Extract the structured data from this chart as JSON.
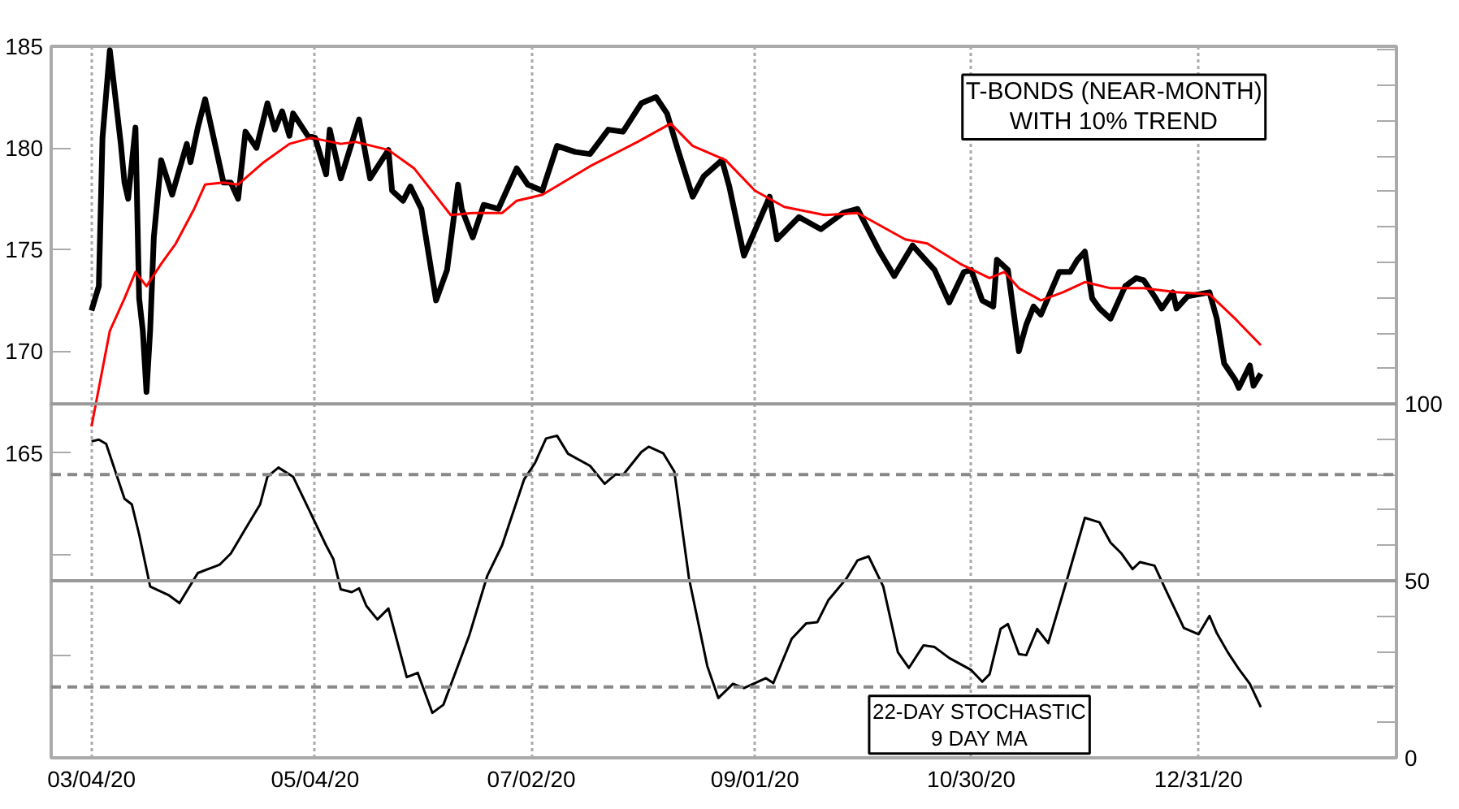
{
  "chart_data": {
    "type": "line",
    "annotations": [
      "T-BONDS (NEAR-MONTH)\nWITH 10% TREND",
      "22-DAY STOCHASTIC\n9 DAY MA"
    ],
    "xlim": [
      "2020-02-22",
      "2021-02-23"
    ],
    "xticks": [
      {
        "value": "2020-03-04",
        "label": "03/04/20"
      },
      {
        "value": "2020-05-04",
        "label": "05/04/20"
      },
      {
        "value": "2020-07-02",
        "label": "07/02/20"
      },
      {
        "value": "2020-09-01",
        "label": "09/01/20"
      },
      {
        "value": "2020-10-30",
        "label": "10/30/20"
      },
      {
        "value": "2020-12-31",
        "label": "12/31/20"
      }
    ],
    "ylim": [
      150,
      185
    ],
    "yticks": [
      {
        "value": 155,
        "label": null
      },
      {
        "value": 160,
        "label": null
      },
      165,
      170,
      175,
      180,
      185
    ],
    "y2lim": [
      0,
      201
    ],
    "y2ticks": [
      0,
      {
        "value": 10,
        "label": null
      },
      {
        "value": 20,
        "label": null
      },
      {
        "value": 30,
        "label": null
      },
      {
        "value": 40,
        "label": null
      },
      50,
      {
        "value": 60,
        "label": null
      },
      {
        "value": 70,
        "label": null
      },
      {
        "value": 80,
        "label": null
      },
      {
        "value": 90,
        "label": null
      },
      100,
      {
        "value": 110,
        "label": null
      },
      {
        "value": 120,
        "label": null
      },
      {
        "value": 130,
        "label": null
      },
      {
        "value": 140,
        "label": null
      },
      {
        "value": 150,
        "label": null
      },
      {
        "value": 160,
        "label": null
      },
      {
        "value": 170,
        "label": null
      },
      {
        "value": 180,
        "label": null
      },
      {
        "value": 190,
        "label": null
      },
      {
        "value": 200,
        "label": null
      }
    ],
    "grid": "x",
    "ref_lines": [
      {
        "axis": "y2",
        "value": 100,
        "color": "#999999",
        "line_style": "solid"
      },
      {
        "axis": "y2",
        "value": 80,
        "color": "#888888",
        "line_style": "dashed"
      },
      {
        "axis": "y2",
        "value": 50,
        "color": "#999999",
        "line_style": "solid"
      },
      {
        "axis": "y2",
        "value": 20,
        "color": "#888888",
        "line_style": "dashed"
      }
    ],
    "series": [
      {
        "color": "#000000",
        "x": [
          "2020-03-04",
          "2020-03-06",
          "2020-03-07",
          "2020-03-09",
          "2020-03-10",
          "2020-03-12",
          "2020-03-13",
          "2020-03-14",
          "2020-03-16",
          "2020-03-17",
          "2020-03-18",
          "2020-03-19",
          "2020-03-20",
          "2020-03-21",
          "2020-03-23",
          "2020-03-26",
          "2020-03-30",
          "2020-03-31",
          "2020-04-02",
          "2020-04-04",
          "2020-04-09",
          "2020-04-11",
          "2020-04-13",
          "2020-04-15",
          "2020-04-18",
          "2020-04-21",
          "2020-04-23",
          "2020-04-25",
          "2020-04-27",
          "2020-04-28",
          "2020-05-02",
          "2020-05-04",
          "2020-05-07",
          "2020-05-08",
          "2020-05-11",
          "2020-05-16",
          "2020-05-19",
          "2020-05-24",
          "2020-05-25",
          "2020-05-28",
          "2020-05-30",
          "2020-06-02",
          "2020-06-06",
          "2020-06-09",
          "2020-06-12",
          "2020-06-13",
          "2020-06-16",
          "2020-06-19",
          "2020-06-23",
          "2020-06-28",
          "2020-07-01",
          "2020-07-05",
          "2020-07-09",
          "2020-07-14",
          "2020-07-18",
          "2020-07-23",
          "2020-07-27",
          "2020-08-01",
          "2020-08-05",
          "2020-08-08",
          "2020-08-11",
          "2020-08-15",
          "2020-08-18",
          "2020-08-23",
          "2020-08-25",
          "2020-08-29",
          "2020-09-05",
          "2020-09-07",
          "2020-09-13",
          "2020-09-19",
          "2020-09-25",
          "2020-09-29",
          "2020-10-05",
          "2020-10-09",
          "2020-10-14",
          "2020-10-20",
          "2020-10-24",
          "2020-10-28",
          "2020-10-30",
          "2020-11-02",
          "2020-11-05",
          "2020-11-06",
          "2020-11-09",
          "2020-11-12",
          "2020-11-14",
          "2020-11-16",
          "2020-11-18",
          "2020-11-23",
          "2020-11-26",
          "2020-11-28",
          "2020-11-30",
          "2020-12-02",
          "2020-12-04",
          "2020-12-07",
          "2020-12-11",
          "2020-12-14",
          "2020-12-16",
          "2020-12-19",
          "2020-12-21",
          "2020-12-24",
          "2020-12-25",
          "2020-12-28",
          "2021-01-03",
          "2021-01-05",
          "2021-01-07",
          "2021-01-10",
          "2021-01-11",
          "2021-01-14",
          "2021-01-15",
          "2021-01-17"
        ],
        "values": [
          172.0,
          173.2,
          180.5,
          184.8,
          183.3,
          180.2,
          178.3,
          177.5,
          181.0,
          172.6,
          171.0,
          168.0,
          171.0,
          175.6,
          179.4,
          177.7,
          180.2,
          179.3,
          181.0,
          182.4,
          178.3,
          178.3,
          177.5,
          180.8,
          180.0,
          182.2,
          180.9,
          181.8,
          180.6,
          181.7,
          180.6,
          180.5,
          178.7,
          180.9,
          178.5,
          181.4,
          178.5,
          179.9,
          177.9,
          177.4,
          178.1,
          177.0,
          172.5,
          174.0,
          178.2,
          177.0,
          175.6,
          177.2,
          177.0,
          179.0,
          178.2,
          177.9,
          180.1,
          179.8,
          179.7,
          180.9,
          180.8,
          182.2,
          182.5,
          181.7,
          179.9,
          177.6,
          178.6,
          179.4,
          178.1,
          174.7,
          177.6,
          175.5,
          176.6,
          176.0,
          176.8,
          177.0,
          174.9,
          173.7,
          175.2,
          174.0,
          172.4,
          173.9,
          174.0,
          172.5,
          172.2,
          174.5,
          174.0,
          170.0,
          171.3,
          172.2,
          171.8,
          173.9,
          173.9,
          174.5,
          174.9,
          172.6,
          172.1,
          171.6,
          173.2,
          173.6,
          173.5,
          172.7,
          172.1,
          172.9,
          172.1,
          172.7,
          172.9,
          171.6,
          169.4,
          168.6,
          168.2,
          169.3,
          168.3,
          168.9
        ]
      },
      {
        "color": "#ff0000",
        "x": [
          "2020-03-04",
          "2020-03-09",
          "2020-03-13",
          "2020-03-16",
          "2020-03-19",
          "2020-03-23",
          "2020-03-27",
          "2020-04-01",
          "2020-04-04",
          "2020-04-09",
          "2020-04-13",
          "2020-04-20",
          "2020-04-27",
          "2020-05-03",
          "2020-05-11",
          "2020-05-15",
          "2020-05-24",
          "2020-05-31",
          "2020-06-10",
          "2020-06-16",
          "2020-06-24",
          "2020-06-28",
          "2020-07-05",
          "2020-07-18",
          "2020-07-31",
          "2020-08-09",
          "2020-08-15",
          "2020-08-24",
          "2020-09-01",
          "2020-09-09",
          "2020-09-20",
          "2020-09-29",
          "2020-10-12",
          "2020-10-18",
          "2020-10-27",
          "2020-11-04",
          "2020-11-08",
          "2020-11-12",
          "2020-11-18",
          "2020-11-24",
          "2020-11-30",
          "2020-12-07",
          "2020-12-16",
          "2020-12-25",
          "2021-01-03",
          "2021-01-10",
          "2021-01-17"
        ],
        "values": [
          166.3,
          171.0,
          172.6,
          173.9,
          173.2,
          174.3,
          175.3,
          177.0,
          178.2,
          178.3,
          178.2,
          179.3,
          180.2,
          180.5,
          180.2,
          180.3,
          179.9,
          179.0,
          176.7,
          176.8,
          176.8,
          177.4,
          177.7,
          179.1,
          180.3,
          181.2,
          180.1,
          179.4,
          177.9,
          177.1,
          176.7,
          176.8,
          175.5,
          175.3,
          174.3,
          173.6,
          173.9,
          173.1,
          172.5,
          172.9,
          173.4,
          173.1,
          173.1,
          172.9,
          172.8,
          171.6,
          170.3
        ]
      },
      {
        "color": "#000000",
        "axis": "y2",
        "x": [
          "2020-03-04",
          "2020-03-06",
          "2020-03-08",
          "2020-03-10",
          "2020-03-13",
          "2020-03-15",
          "2020-03-17",
          "2020-03-20",
          "2020-03-25",
          "2020-03-28",
          "2020-04-02",
          "2020-04-06",
          "2020-04-08",
          "2020-04-11",
          "2020-04-15",
          "2020-04-19",
          "2020-04-21",
          "2020-04-24",
          "2020-04-28",
          "2020-05-02",
          "2020-05-07",
          "2020-05-09",
          "2020-05-11",
          "2020-05-14",
          "2020-05-16",
          "2020-05-18",
          "2020-05-21",
          "2020-05-24",
          "2020-05-29",
          "2020-06-01",
          "2020-06-05",
          "2020-06-08",
          "2020-06-15",
          "2020-06-20",
          "2020-06-24",
          "2020-06-30",
          "2020-07-03",
          "2020-07-06",
          "2020-07-09",
          "2020-07-12",
          "2020-07-18",
          "2020-07-22",
          "2020-07-25",
          "2020-07-27",
          "2020-08-01",
          "2020-08-03",
          "2020-08-07",
          "2020-08-10",
          "2020-08-14",
          "2020-08-19",
          "2020-08-22",
          "2020-08-26",
          "2020-08-29",
          "2020-09-04",
          "2020-09-06",
          "2020-09-11",
          "2020-09-15",
          "2020-09-18",
          "2020-09-21",
          "2020-09-26",
          "2020-09-29",
          "2020-10-02",
          "2020-10-06",
          "2020-10-10",
          "2020-10-13",
          "2020-10-17",
          "2020-10-20",
          "2020-10-24",
          "2020-10-30",
          "2020-11-02",
          "2020-11-04",
          "2020-11-07",
          "2020-11-09",
          "2020-11-12",
          "2020-11-14",
          "2020-11-17",
          "2020-11-20",
          "2020-11-25",
          "2020-11-30",
          "2020-12-04",
          "2020-12-07",
          "2020-12-10",
          "2020-12-13",
          "2020-12-15",
          "2020-12-19",
          "2020-12-22",
          "2020-12-27",
          "2020-12-31",
          "2021-01-03",
          "2021-01-05",
          "2021-01-08",
          "2021-01-11",
          "2021-01-14",
          "2021-01-17"
        ],
        "values": [
          89.4,
          89.9,
          88.7,
          82.5,
          73.2,
          71.6,
          63.1,
          48.4,
          46.0,
          43.7,
          52.2,
          53.8,
          54.6,
          57.7,
          64.7,
          71.6,
          79.4,
          82.0,
          79.4,
          70.8,
          60.0,
          56.1,
          47.6,
          46.8,
          47.9,
          42.9,
          39.1,
          42.2,
          22.8,
          24.0,
          12.7,
          15.0,
          34.4,
          51.5,
          60.0,
          78.6,
          83.3,
          90.2,
          91.0,
          85.9,
          82.5,
          77.4,
          80.1,
          79.9,
          86.4,
          87.9,
          86.0,
          80.9,
          50.7,
          25.9,
          16.9,
          20.9,
          19.7,
          22.5,
          21.1,
          33.6,
          38.0,
          38.3,
          44.5,
          50.7,
          55.8,
          56.9,
          48.4,
          29.8,
          25.4,
          31.8,
          31.3,
          28.2,
          24.8,
          21.5,
          23.6,
          36.4,
          37.8,
          29.3,
          29.0,
          36.4,
          32.4,
          49.9,
          67.8,
          66.5,
          60.8,
          57.7,
          53.3,
          55.3,
          54.3,
          47.6,
          36.7,
          34.9,
          40.1,
          35.2,
          29.8,
          25.1,
          20.9,
          14.3
        ]
      }
    ]
  }
}
